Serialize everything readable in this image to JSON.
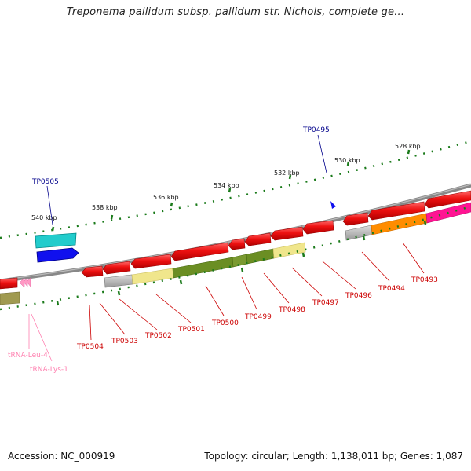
{
  "title": "Treponema pallidum subsp. pallidum str. Nichols, complete ge...",
  "footer": {
    "accession": "Accession: NC_000919",
    "summary": "Topology: circular; Length: 1,138,011 bp; Genes: 1,087"
  },
  "ruler": [
    "540 kbp",
    "538 kbp",
    "536 kbp",
    "534 kbp",
    "532 kbp",
    "530 kbp",
    "528 kbp"
  ],
  "forward_genes": [
    "TP0505",
    "TP0495"
  ],
  "reverse_genes": [
    "TP0504",
    "TP0503",
    "TP0502",
    "TP0501",
    "TP0500",
    "TP0499",
    "TP0498",
    "TP0497",
    "TP0496",
    "TP0494",
    "TP0493"
  ],
  "trna_genes": [
    "tRNA-Leu-4",
    "tRNA-Lys-1"
  ],
  "colors": {
    "forward_label": "#00008b",
    "reverse_label": "#cc0000",
    "trna_label": "#ff80b0",
    "gene_red": "#ee1111",
    "backbone": "#888888",
    "tick_green": "#1a7a1a"
  }
}
